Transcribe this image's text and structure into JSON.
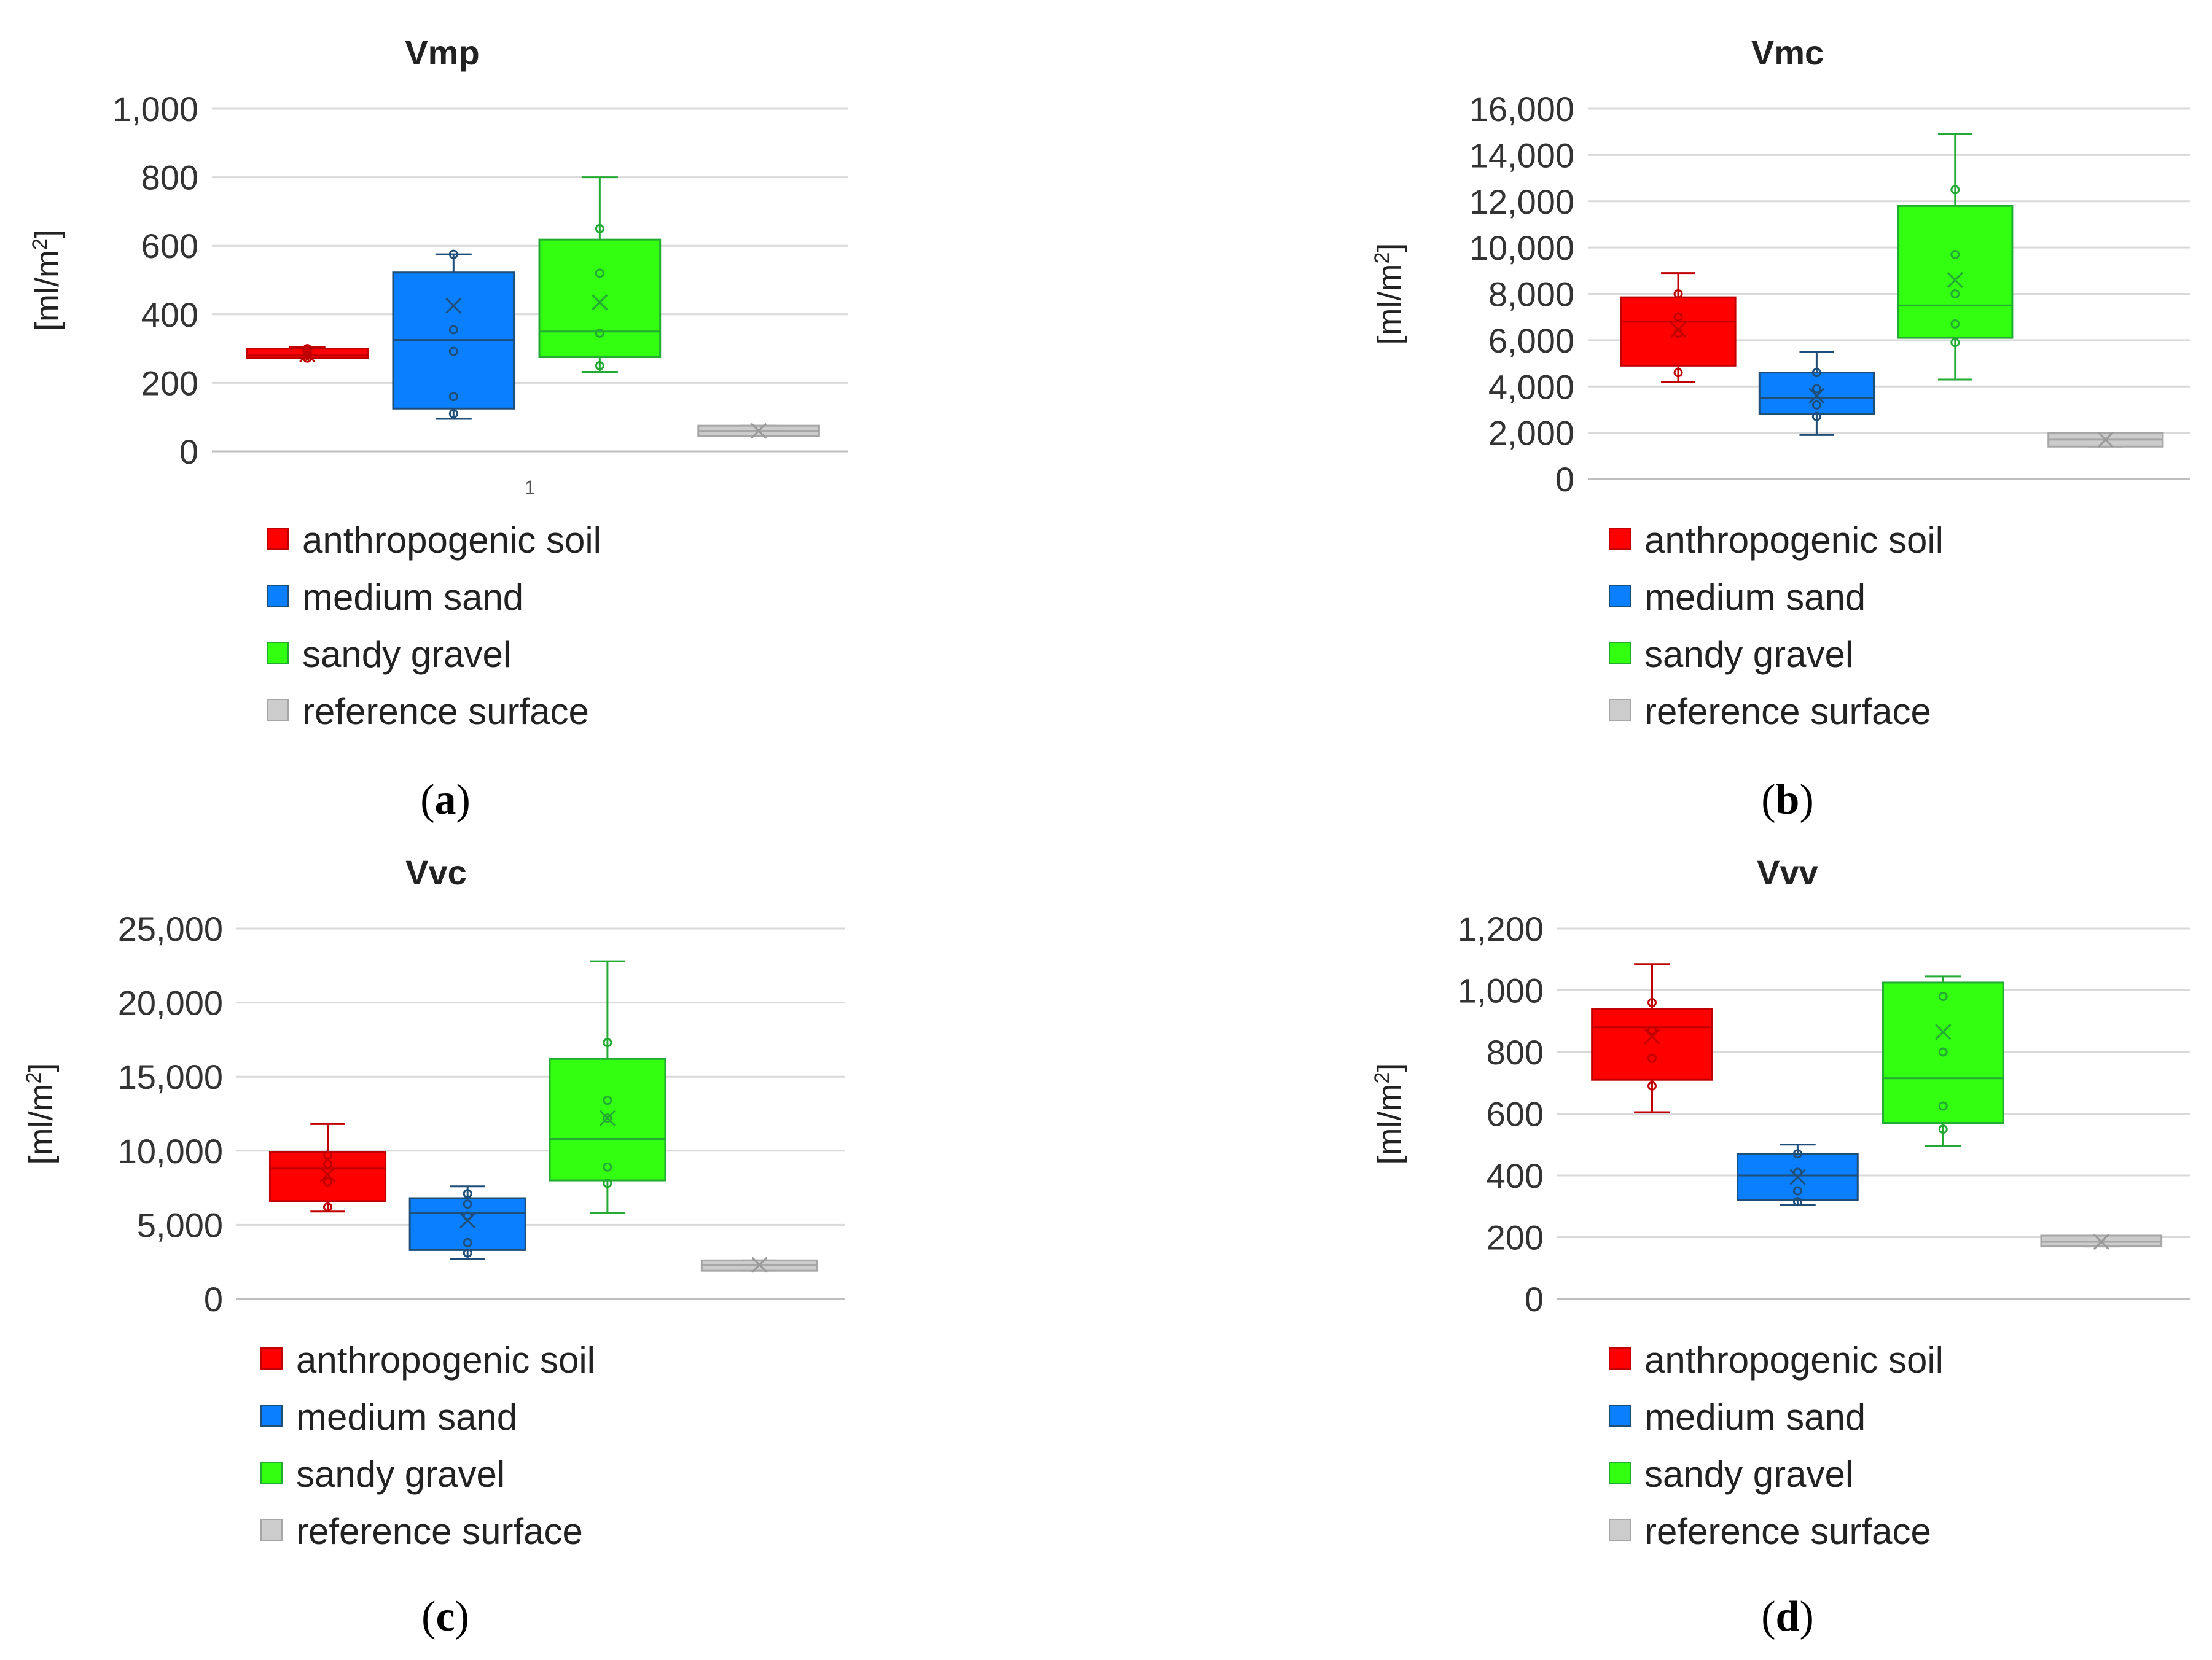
{
  "legend": [
    {
      "name": "anthropogenic soil",
      "fill": "#ff0000",
      "stroke": "#c00000"
    },
    {
      "name": "medium sand",
      "fill": "#0a7fff",
      "stroke": "#1f4e79"
    },
    {
      "name": "sandy gravel",
      "fill": "#33ff11",
      "stroke": "#22aa33"
    },
    {
      "name": "reference surface",
      "fill": "#cccccc",
      "stroke": "#a6a6a6"
    }
  ],
  "chart_data": [
    {
      "type": "box",
      "panel": "(a)",
      "panel_letter": "a",
      "title": "Vmp",
      "ylabel": "[ml/m",
      "ylabel_sup": "2",
      "ylabel_end": "]",
      "ylim": [
        0,
        1000
      ],
      "yticks": [
        0,
        200,
        400,
        600,
        800,
        1000
      ],
      "ytick_labels": [
        "0",
        "200",
        "400",
        "600",
        "800",
        "1,000"
      ],
      "category_label": "1",
      "series": [
        {
          "name": "anthropogenic soil",
          "min": 272,
          "q1": 272,
          "median": 280,
          "q3": 300,
          "max": 305,
          "mean": 283,
          "points": [
            272,
            280,
            288,
            300
          ]
        },
        {
          "name": "medium sand",
          "min": 95,
          "q1": 125,
          "median": 325,
          "q3": 522,
          "max": 575,
          "mean": 425,
          "points": [
            110,
            160,
            292,
            355,
            575
          ]
        },
        {
          "name": "sandy gravel",
          "min": 232,
          "q1": 275,
          "median": 350,
          "q3": 618,
          "max": 800,
          "mean": 435,
          "points": [
            250,
            345,
            520,
            650
          ]
        },
        {
          "name": "reference surface",
          "min": 45,
          "q1": 45,
          "median": 60,
          "q3": 75,
          "max": 75,
          "mean": 60,
          "points": []
        }
      ]
    },
    {
      "type": "box",
      "panel": "(b)",
      "panel_letter": "b",
      "title": "Vmc",
      "ylabel": "[ml/m",
      "ylabel_sup": "2",
      "ylabel_end": "]",
      "ylim": [
        0,
        16000
      ],
      "yticks": [
        0,
        2000,
        4000,
        6000,
        8000,
        10000,
        12000,
        14000,
        16000
      ],
      "ytick_labels": [
        "0",
        "2,000",
        "4,000",
        "6,000",
        "8,000",
        "10,000",
        "12,000",
        "14,000",
        "16,000"
      ],
      "category_label": "",
      "series": [
        {
          "name": "anthropogenic soil",
          "min": 4200,
          "q1": 4900,
          "median": 6800,
          "q3": 7850,
          "max": 8900,
          "mean": 6450,
          "points": [
            4600,
            6300,
            7000,
            8000
          ]
        },
        {
          "name": "medium sand",
          "min": 1900,
          "q1": 2800,
          "median": 3500,
          "q3": 4600,
          "max": 5500,
          "mean": 3600,
          "points": [
            2700,
            3200,
            3900,
            4600
          ]
        },
        {
          "name": "sandy gravel",
          "min": 4300,
          "q1": 6100,
          "median": 7500,
          "q3": 11800,
          "max": 14900,
          "mean": 8600,
          "points": [
            5900,
            6700,
            8000,
            9700,
            12500
          ]
        },
        {
          "name": "reference surface",
          "min": 1400,
          "q1": 1400,
          "median": 1700,
          "q3": 2000,
          "max": 2000,
          "mean": 1700,
          "points": []
        }
      ]
    },
    {
      "type": "box",
      "panel": "(c)",
      "panel_letter": "c",
      "title": "Vvc",
      "ylabel": "[ml/m",
      "ylabel_sup": "2",
      "ylabel_end": "]",
      "ylim": [
        0,
        25000
      ],
      "yticks": [
        0,
        5000,
        10000,
        15000,
        20000,
        25000
      ],
      "ytick_labels": [
        "0",
        "5,000",
        "10,000",
        "15,000",
        "20,000",
        "25,000"
      ],
      "category_label": "",
      "series": [
        {
          "name": "anthropogenic soil",
          "min": 5900,
          "q1": 6600,
          "median": 8800,
          "q3": 9900,
          "max": 11800,
          "mean": 8400,
          "points": [
            6200,
            7900,
            9100,
            9700
          ]
        },
        {
          "name": "medium sand",
          "min": 2700,
          "q1": 3300,
          "median": 5800,
          "q3": 6800,
          "max": 7600,
          "mean": 5300,
          "points": [
            3100,
            3800,
            5600,
            6400,
            7100
          ]
        },
        {
          "name": "sandy gravel",
          "min": 5800,
          "q1": 8000,
          "median": 10800,
          "q3": 16200,
          "max": 22800,
          "mean": 12200,
          "points": [
            7800,
            8900,
            12200,
            13400,
            17300
          ]
        },
        {
          "name": "reference surface",
          "min": 1900,
          "q1": 1900,
          "median": 2300,
          "q3": 2600,
          "max": 2600,
          "mean": 2300,
          "points": []
        }
      ]
    },
    {
      "type": "box",
      "panel": "(d)",
      "panel_letter": "d",
      "title": "Vvv",
      "ylabel": "[ml/m",
      "ylabel_sup": "2",
      "ylabel_end": "]",
      "ylim": [
        0,
        1200
      ],
      "yticks": [
        0,
        200,
        400,
        600,
        800,
        1000,
        1200
      ],
      "ytick_labels": [
        "0",
        "200",
        "400",
        "600",
        "800",
        "1,000",
        "1,200"
      ],
      "category_label": "",
      "series": [
        {
          "name": "anthropogenic soil",
          "min": 605,
          "q1": 710,
          "median": 880,
          "q3": 940,
          "max": 1085,
          "mean": 850,
          "points": [
            690,
            780,
            870,
            960
          ]
        },
        {
          "name": "medium sand",
          "min": 305,
          "q1": 320,
          "median": 400,
          "q3": 470,
          "max": 500,
          "mean": 395,
          "points": [
            315,
            350,
            410,
            470
          ]
        },
        {
          "name": "sandy gravel",
          "min": 495,
          "q1": 570,
          "median": 715,
          "q3": 1025,
          "max": 1045,
          "mean": 865,
          "points": [
            550,
            625,
            800,
            980
          ]
        },
        {
          "name": "reference surface",
          "min": 170,
          "q1": 170,
          "median": 185,
          "q3": 205,
          "max": 205,
          "mean": 185,
          "points": []
        }
      ]
    }
  ]
}
